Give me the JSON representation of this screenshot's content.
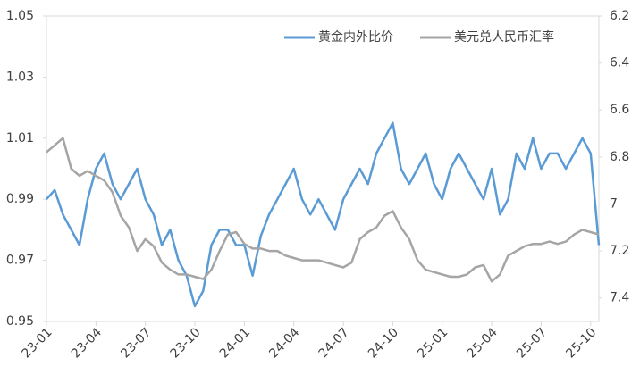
{
  "chart_data": {
    "type": "line",
    "categories": [
      "23-01",
      null,
      null,
      null,
      null,
      null,
      "23-04",
      null,
      null,
      null,
      null,
      null,
      "23-07",
      null,
      null,
      null,
      null,
      null,
      "23-10",
      null,
      null,
      null,
      null,
      null,
      "24-01",
      null,
      null,
      null,
      null,
      null,
      "24-04",
      null,
      null,
      null,
      null,
      null,
      "24-07",
      null,
      null,
      null,
      null,
      null,
      "24-10",
      null,
      null,
      null,
      null,
      null,
      "25-01",
      null,
      null,
      null,
      null,
      null,
      "25-04",
      null,
      null,
      null,
      null,
      null,
      "25-07",
      null,
      null,
      null,
      null,
      null,
      "25-10",
      null
    ],
    "series": [
      {
        "name": "黄金内外比价",
        "color": "#5b9bd5",
        "axis": "y",
        "values": [
          0.99,
          0.993,
          0.985,
          0.98,
          0.975,
          0.99,
          1.0,
          1.005,
          0.995,
          0.99,
          0.995,
          1.0,
          0.99,
          0.985,
          0.975,
          0.98,
          0.97,
          0.965,
          0.955,
          0.96,
          0.975,
          0.98,
          0.98,
          0.975,
          0.975,
          0.965,
          0.978,
          0.985,
          0.99,
          0.995,
          1.0,
          0.99,
          0.985,
          0.99,
          0.985,
          0.98,
          0.99,
          0.995,
          1.0,
          0.995,
          1.005,
          1.01,
          1.015,
          1.0,
          0.995,
          1.0,
          1.005,
          0.995,
          0.99,
          1.0,
          1.005,
          1.0,
          0.995,
          0.99,
          1.0,
          0.985,
          0.99,
          1.005,
          1.0,
          1.01,
          1.0,
          1.005,
          1.005,
          1.0,
          1.005,
          1.01,
          1.005,
          0.975
        ]
      },
      {
        "name": "美元兑人民币汇率",
        "color": "#a5a5a5",
        "axis": "y2",
        "values": [
          6.78,
          6.75,
          6.72,
          6.85,
          6.88,
          6.86,
          6.88,
          6.9,
          6.95,
          7.05,
          7.1,
          7.2,
          7.15,
          7.18,
          7.25,
          7.28,
          7.3,
          7.3,
          7.31,
          7.32,
          7.28,
          7.2,
          7.13,
          7.12,
          7.17,
          7.19,
          7.19,
          7.2,
          7.2,
          7.22,
          7.23,
          7.24,
          7.24,
          7.24,
          7.25,
          7.26,
          7.27,
          7.25,
          7.15,
          7.12,
          7.1,
          7.05,
          7.03,
          7.1,
          7.15,
          7.24,
          7.28,
          7.29,
          7.3,
          7.31,
          7.31,
          7.3,
          7.27,
          7.26,
          7.33,
          7.3,
          7.22,
          7.2,
          7.18,
          7.17,
          7.17,
          7.16,
          7.17,
          7.16,
          7.13,
          7.11,
          7.12,
          7.13
        ]
      }
    ],
    "ylim": [
      0.95,
      1.05
    ],
    "yticks": [
      0.95,
      0.97,
      0.99,
      1.01,
      1.03,
      1.05
    ],
    "y2lim": [
      7.5,
      6.2
    ],
    "y2ticks": [
      6.2,
      6.4,
      6.6,
      6.8,
      7,
      7.2,
      7.4
    ],
    "legend": "top-right"
  }
}
